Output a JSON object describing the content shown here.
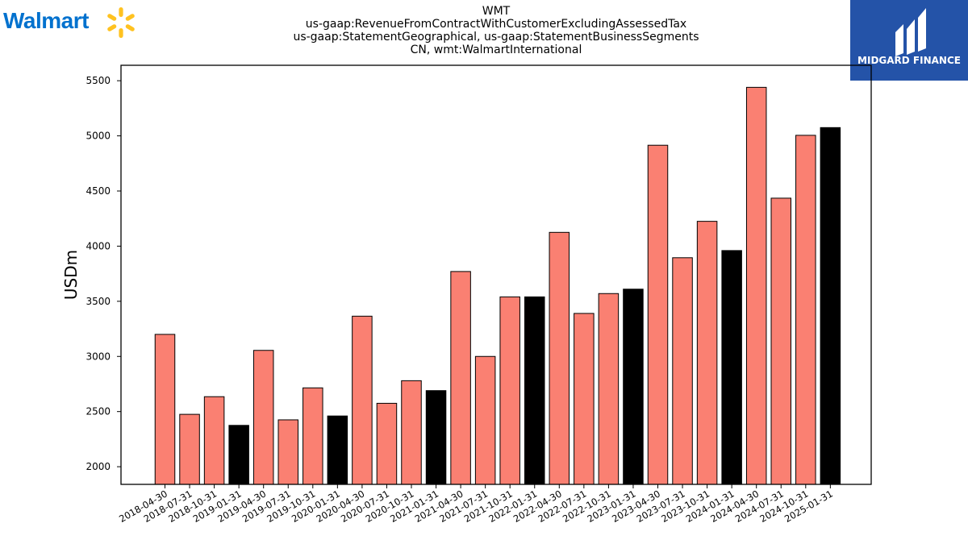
{
  "logo": {
    "left_text": "Walmart",
    "left_color": "#0071ce",
    "spark_color": "#ffc220",
    "right_text": "MIDGARD FINANCE",
    "right_bg": "#2453a8"
  },
  "header": {
    "lines": [
      "WMT",
      "us-gaap:RevenueFromContractWithCustomerExcludingAssessedTax",
      "us-gaap:StatementGeographical, us-gaap:StatementBusinessSegments",
      "CN, wmt:WalmartInternational"
    ]
  },
  "chart_data": {
    "type": "bar",
    "title": "WMT",
    "xlabel": "",
    "ylabel": "USDm",
    "ylim": [
      1840,
      5640
    ],
    "yticks": [
      2000,
      2500,
      3000,
      3500,
      4000,
      4500,
      5000,
      5500
    ],
    "grid": false,
    "colors": {
      "quarter": "#fa8072",
      "fiscal_year_end": "#000000"
    },
    "categories": [
      "2018-04-30",
      "2018-07-31",
      "2018-10-31",
      "2019-01-31",
      "2019-04-30",
      "2019-07-31",
      "2019-10-31",
      "2020-01-31",
      "2020-04-30",
      "2020-07-31",
      "2020-10-31",
      "2021-01-31",
      "2021-04-30",
      "2021-07-31",
      "2021-10-31",
      "2022-01-31",
      "2022-04-30",
      "2022-07-31",
      "2022-10-31",
      "2023-01-31",
      "2023-04-30",
      "2023-07-31",
      "2023-10-31",
      "2024-01-31",
      "2024-04-30",
      "2024-07-31",
      "2024-10-31",
      "2025-01-31"
    ],
    "values": [
      3200,
      2475,
      2635,
      2375,
      3055,
      2425,
      2715,
      2460,
      3365,
      2575,
      2780,
      2690,
      3770,
      3000,
      3540,
      3540,
      4125,
      3390,
      3570,
      3610,
      4915,
      3895,
      4225,
      3960,
      5440,
      4435,
      5005,
      5075
    ],
    "highlight": [
      false,
      false,
      false,
      true,
      false,
      false,
      false,
      true,
      false,
      false,
      false,
      true,
      false,
      false,
      false,
      true,
      false,
      false,
      false,
      true,
      false,
      false,
      false,
      true,
      false,
      false,
      false,
      true
    ]
  }
}
